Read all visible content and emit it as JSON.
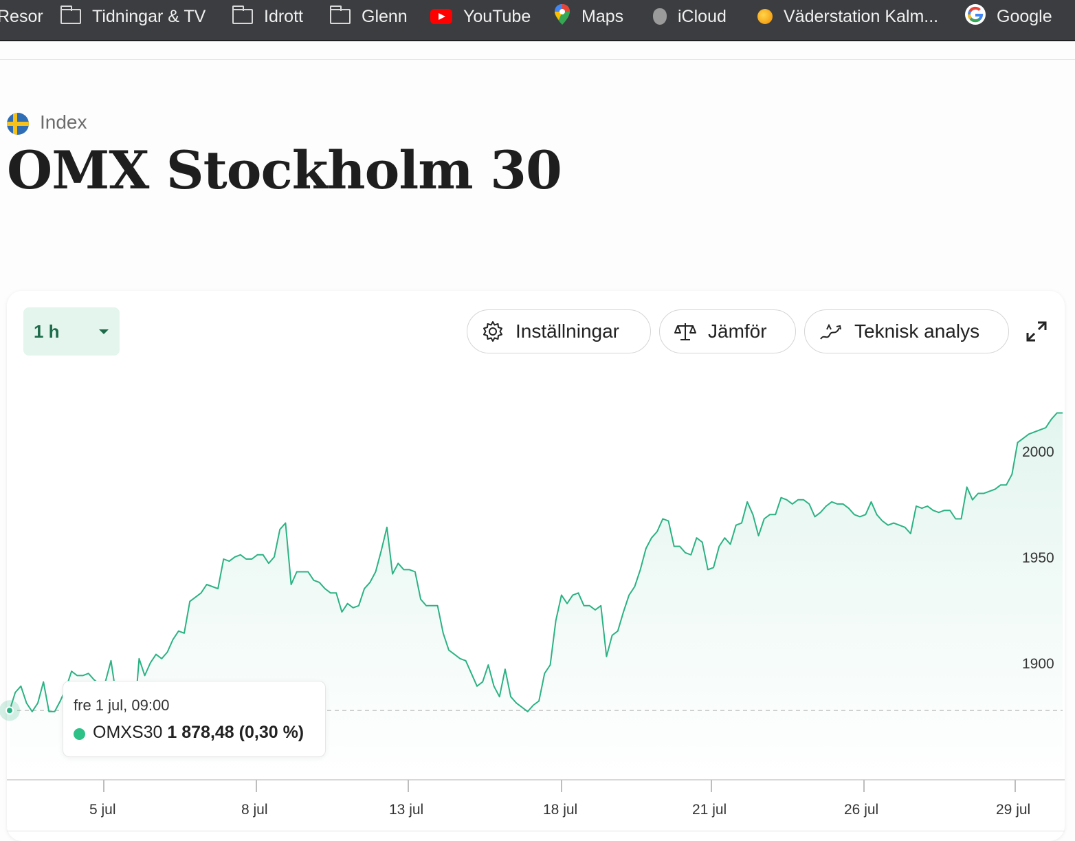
{
  "bookmarks": [
    {
      "label": "Resor",
      "icon": "folder-icon"
    },
    {
      "label": "Tidningar & TV",
      "icon": "folder-icon"
    },
    {
      "label": "Idrott",
      "icon": "folder-icon"
    },
    {
      "label": "Glenn",
      "icon": "folder-icon"
    },
    {
      "label": "YouTube",
      "icon": "youtube-icon"
    },
    {
      "label": "Maps",
      "icon": "maps-icon"
    },
    {
      "label": "iCloud",
      "icon": "apple-icon"
    },
    {
      "label": "Väderstation Kalm...",
      "icon": "sun-icon"
    },
    {
      "label": "Google",
      "icon": "google-icon"
    }
  ],
  "header": {
    "category": "Index",
    "flag": "sweden-flag-icon",
    "title": "OMX Stockholm 30"
  },
  "toolbar": {
    "period": "1 h",
    "settings_label": "Inställningar",
    "compare_label": "Jämför",
    "analysis_label": "Teknisk analys"
  },
  "tooltip": {
    "date": "fre 1 jul, 09:00",
    "symbol": "OMXS30",
    "value": "1 878,48 (0,30 %)"
  },
  "colors": {
    "line": "#2bb283",
    "accent_green": "#1d6b4a",
    "period_bg": "#e3f5ec"
  },
  "chart_data": {
    "type": "line",
    "title": "",
    "xlabel": "",
    "ylabel": "",
    "x_tick_labels": [
      "5 jul",
      "8 jul",
      "13 jul",
      "18 jul",
      "21 jul",
      "26 jul",
      "29 jul"
    ],
    "y_tick_labels": [
      "1900",
      "1950",
      "2000"
    ],
    "y_ticks": [
      1900,
      1950,
      2000
    ],
    "ylim": [
      1870,
      2030
    ],
    "reference_value": 1878.5,
    "grid": false,
    "series": [
      {
        "name": "OMXS30",
        "values": [
          1878.5,
          1887,
          1890,
          1882,
          1878,
          1882,
          1892,
          1878,
          1878,
          1883,
          1889,
          1897,
          1895,
          1895,
          1896,
          1893,
          1891,
          1892,
          1902,
          1884,
          1883,
          1874,
          1870,
          1903,
          1895,
          1901,
          1905,
          1903,
          1906,
          1912,
          1916,
          1915,
          1930,
          1932,
          1934,
          1938,
          1937,
          1936,
          1950,
          1949,
          1951,
          1952,
          1950,
          1950,
          1952,
          1952,
          1948,
          1951,
          1964,
          1967,
          1938,
          1944,
          1944,
          1944,
          1940,
          1939,
          1936,
          1934,
          1934,
          1925,
          1929,
          1927,
          1928,
          1936,
          1939,
          1944,
          1954,
          1965,
          1943,
          1948,
          1945,
          1945,
          1944,
          1931,
          1928,
          1928,
          1928,
          1915,
          1907,
          1905,
          1903,
          1902,
          1896,
          1890,
          1892,
          1900,
          1890,
          1885,
          1898,
          1885,
          1882,
          1880,
          1878,
          1881,
          1883,
          1896,
          1900,
          1921,
          1933,
          1929,
          1933,
          1934,
          1928,
          1928,
          1926,
          1928,
          1904,
          1914,
          1916,
          1925,
          1933,
          1937,
          1945,
          1955,
          1960,
          1963,
          1969,
          1968,
          1956,
          1956,
          1953,
          1952,
          1960,
          1958,
          1945,
          1946,
          1956,
          1960,
          1957,
          1966,
          1967,
          1977,
          1971,
          1961,
          1969,
          1971,
          1971,
          1979,
          1978,
          1976,
          1978,
          1978,
          1976,
          1970,
          1972,
          1975,
          1977,
          1976,
          1976,
          1974,
          1971,
          1970,
          1971,
          1977,
          1971,
          1968,
          1966,
          1967,
          1966,
          1965,
          1962,
          1975,
          1974,
          1975,
          1973,
          1972,
          1973,
          1973,
          1969,
          1969,
          1984,
          1978,
          1981,
          1981,
          1982,
          1983,
          1985,
          1985,
          1990,
          2005,
          2007,
          2009,
          2010,
          2011,
          2012,
          2016,
          2019,
          2019
        ]
      }
    ]
  }
}
